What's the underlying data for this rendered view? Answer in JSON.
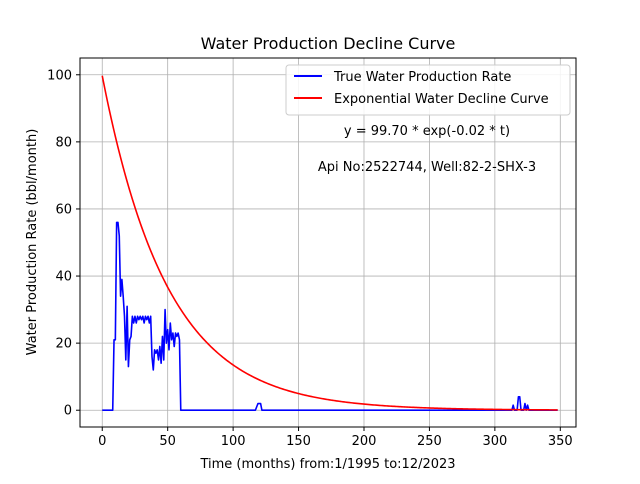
{
  "chart_data": {
    "type": "line",
    "title": "Water Production Decline Curve",
    "xlabel": "Time (months) from:1/1995 to:12/2023",
    "ylabel": "Water Production Rate (bbl/month)",
    "xlim": [
      -17,
      362
    ],
    "ylim": [
      -5,
      105
    ],
    "x_ticks": [
      0,
      50,
      100,
      150,
      200,
      250,
      300,
      350
    ],
    "y_ticks": [
      0,
      20,
      40,
      60,
      80,
      100
    ],
    "grid": true,
    "legend_position": "top-right",
    "annotations": [
      "y = 99.70 * exp(-0.02 * t)",
      "Api No:2522744, Well:82-2-SHX-3"
    ],
    "series": [
      {
        "name": "True Water Production Rate",
        "color": "#0000ff",
        "points": [
          [
            0,
            0
          ],
          [
            8,
            0
          ],
          [
            9,
            21
          ],
          [
            10,
            21
          ],
          [
            11,
            56
          ],
          [
            12,
            56
          ],
          [
            13,
            52
          ],
          [
            14,
            34
          ],
          [
            15,
            39
          ],
          [
            16,
            34
          ],
          [
            17,
            28
          ],
          [
            18,
            15
          ],
          [
            19,
            31
          ],
          [
            20,
            13
          ],
          [
            21,
            21
          ],
          [
            22,
            22
          ],
          [
            23,
            28
          ],
          [
            24,
            26
          ],
          [
            25,
            28
          ],
          [
            26,
            26
          ],
          [
            27,
            28
          ],
          [
            28,
            27
          ],
          [
            29,
            28
          ],
          [
            30,
            27
          ],
          [
            31,
            28
          ],
          [
            32,
            26
          ],
          [
            33,
            28
          ],
          [
            34,
            27
          ],
          [
            35,
            28
          ],
          [
            36,
            26
          ],
          [
            37,
            28
          ],
          [
            38,
            16
          ],
          [
            39,
            12
          ],
          [
            40,
            18
          ],
          [
            41,
            17
          ],
          [
            42,
            18
          ],
          [
            43,
            15
          ],
          [
            44,
            19
          ],
          [
            45,
            14
          ],
          [
            46,
            22
          ],
          [
            47,
            15
          ],
          [
            48,
            30
          ],
          [
            49,
            20
          ],
          [
            50,
            24
          ],
          [
            51,
            18
          ],
          [
            52,
            26
          ],
          [
            53,
            21
          ],
          [
            54,
            23
          ],
          [
            55,
            19
          ],
          [
            56,
            23
          ],
          [
            57,
            22
          ],
          [
            58,
            23
          ],
          [
            59,
            21
          ],
          [
            60,
            0
          ],
          [
            117,
            0
          ],
          [
            119,
            2
          ],
          [
            121,
            2
          ],
          [
            122,
            0
          ],
          [
            313,
            0
          ],
          [
            314,
            1.5
          ],
          [
            315,
            0
          ],
          [
            317,
            0
          ],
          [
            318,
            4
          ],
          [
            319,
            4
          ],
          [
            320,
            0
          ],
          [
            322,
            0
          ],
          [
            323,
            2
          ],
          [
            324,
            0
          ],
          [
            325,
            1.5
          ],
          [
            326,
            0
          ],
          [
            348,
            0
          ]
        ]
      },
      {
        "name": "Exponential Water Decline Curve",
        "color": "#ff0000",
        "equation": {
          "a": 99.7,
          "b": 0.02,
          "t_start": 0,
          "t_end": 348
        }
      }
    ]
  }
}
